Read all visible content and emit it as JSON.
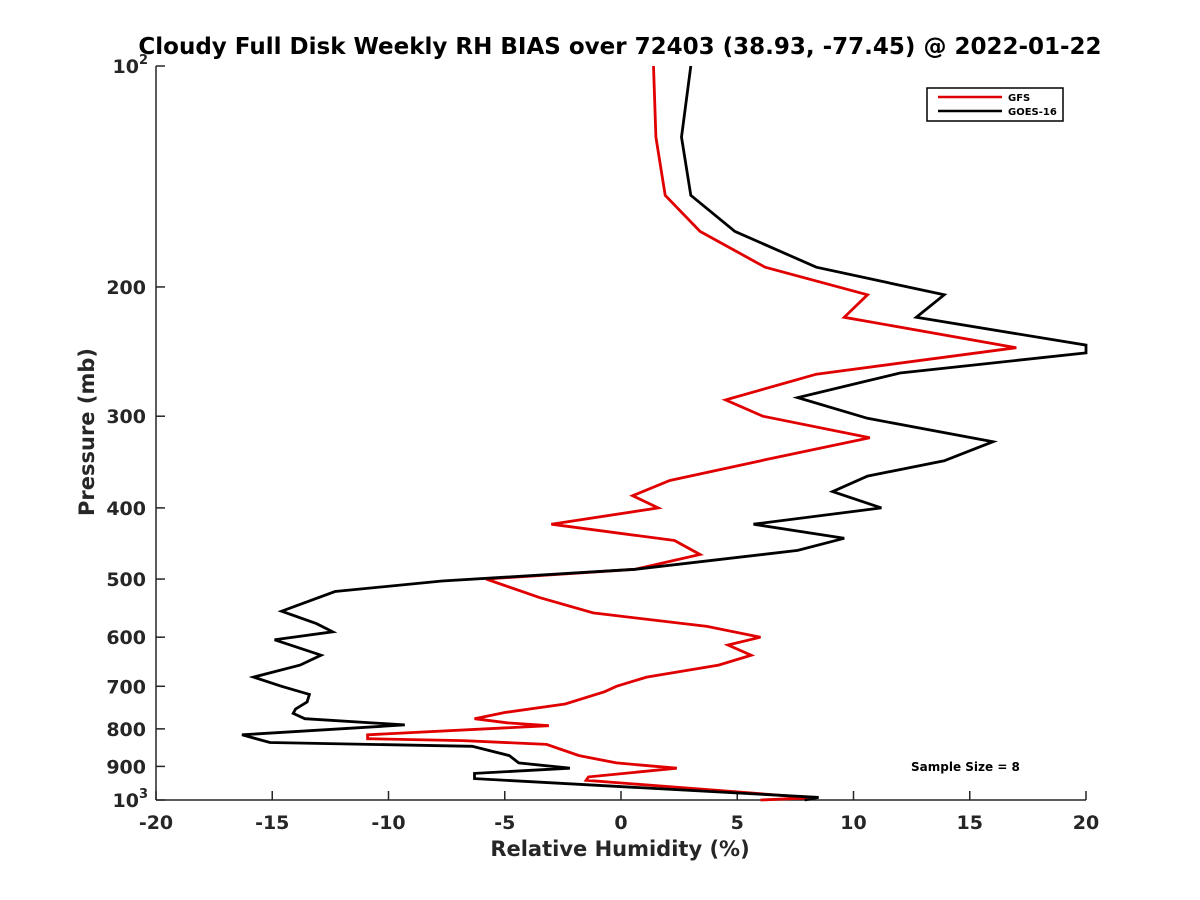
{
  "chart_data": {
    "type": "line",
    "title": "Cloudy Full Disk Weekly RH BIAS over 72403 (38.93, -77.45) @ 2022-01-22",
    "xlabel": "Relative Humidity (%)",
    "ylabel": "Pressure (mb)",
    "xlim": [
      -20,
      20
    ],
    "ylim": [
      1000,
      100
    ],
    "yscale": "log",
    "y_reversed": true,
    "x_ticks": [
      "-20",
      "-15",
      "-10",
      "-5",
      "0",
      "5",
      "10",
      "15",
      "20"
    ],
    "y_ticks": [
      {
        "value": 100,
        "base": "10",
        "exp": "2"
      },
      {
        "value": 200,
        "base": "200",
        "exp": ""
      },
      {
        "value": 300,
        "base": "300",
        "exp": ""
      },
      {
        "value": 400,
        "base": "400",
        "exp": ""
      },
      {
        "value": 500,
        "base": "500",
        "exp": ""
      },
      {
        "value": 600,
        "base": "600",
        "exp": ""
      },
      {
        "value": 700,
        "base": "700",
        "exp": ""
      },
      {
        "value": 800,
        "base": "800",
        "exp": ""
      },
      {
        "value": 900,
        "base": "900",
        "exp": ""
      },
      {
        "value": 1000,
        "base": "10",
        "exp": "3"
      }
    ],
    "grid": false,
    "legend_position": "top-right",
    "annotation": "Sample Size = 8",
    "series": [
      {
        "name": "GFS",
        "color": "#e00000",
        "points": [
          [
            1.4,
            100
          ],
          [
            1.5,
            125
          ],
          [
            1.9,
            150
          ],
          [
            3.4,
            168
          ],
          [
            6.2,
            188
          ],
          [
            10.6,
            205
          ],
          [
            9.6,
            220
          ],
          [
            17.0,
            242
          ],
          [
            8.4,
            263
          ],
          [
            4.5,
            285
          ],
          [
            6.1,
            300
          ],
          [
            10.7,
            321
          ],
          [
            6.2,
            344
          ],
          [
            2.1,
            367
          ],
          [
            0.5,
            385
          ],
          [
            1.6,
            400
          ],
          [
            -3.0,
            421
          ],
          [
            2.3,
            443
          ],
          [
            3.4,
            463
          ],
          [
            0.6,
            485
          ],
          [
            -5.8,
            500
          ],
          [
            -3.5,
            530
          ],
          [
            -1.2,
            556
          ],
          [
            3.7,
            580
          ],
          [
            6.0,
            600
          ],
          [
            4.6,
            615
          ],
          [
            5.6,
            635
          ],
          [
            4.2,
            655
          ],
          [
            1.1,
            680
          ],
          [
            -0.2,
            700
          ],
          [
            -0.7,
            712
          ],
          [
            -2.4,
            740
          ],
          [
            -5.0,
            760
          ],
          [
            -6.3,
            775
          ],
          [
            -4.9,
            785
          ],
          [
            -3.1,
            792
          ],
          [
            -10.9,
            815
          ],
          [
            -10.9,
            825
          ],
          [
            -6.8,
            830
          ],
          [
            -3.2,
            840
          ],
          [
            -1.8,
            870
          ],
          [
            -0.2,
            890
          ],
          [
            2.4,
            905
          ],
          [
            -1.4,
            930
          ],
          [
            -1.5,
            940
          ],
          [
            5.0,
            975
          ],
          [
            8.2,
            993
          ],
          [
            6.0,
            1000
          ]
        ]
      },
      {
        "name": "GOES-16",
        "color": "#000000",
        "points": [
          [
            3.0,
            100
          ],
          [
            2.6,
            125
          ],
          [
            3.0,
            150
          ],
          [
            4.9,
            168
          ],
          [
            8.4,
            188
          ],
          [
            13.9,
            205
          ],
          [
            12.7,
            220
          ],
          [
            20.0,
            240
          ],
          [
            20.0,
            246
          ],
          [
            12.0,
            262
          ],
          [
            7.6,
            283
          ],
          [
            10.6,
            302
          ],
          [
            16.0,
            325
          ],
          [
            13.9,
            345
          ],
          [
            10.6,
            362
          ],
          [
            9.1,
            380
          ],
          [
            11.2,
            400
          ],
          [
            5.7,
            421
          ],
          [
            9.6,
            440
          ],
          [
            7.6,
            457
          ],
          [
            0.6,
            485
          ],
          [
            -7.7,
            503
          ],
          [
            -12.3,
            520
          ],
          [
            -14.6,
            553
          ],
          [
            -13.1,
            575
          ],
          [
            -12.4,
            590
          ],
          [
            -14.9,
            605
          ],
          [
            -12.9,
            635
          ],
          [
            -13.8,
            655
          ],
          [
            -15.8,
            680
          ],
          [
            -14.6,
            700
          ],
          [
            -13.4,
            718
          ],
          [
            -13.5,
            735
          ],
          [
            -14.0,
            752
          ],
          [
            -14.1,
            762
          ],
          [
            -13.6,
            775
          ],
          [
            -9.3,
            790
          ],
          [
            -16.3,
            815
          ],
          [
            -15.1,
            835
          ],
          [
            -6.4,
            845
          ],
          [
            -4.8,
            870
          ],
          [
            -4.4,
            890
          ],
          [
            -2.2,
            905
          ],
          [
            -6.3,
            920
          ],
          [
            -6.3,
            935
          ],
          [
            8.5,
            992
          ],
          [
            7.9,
            1000
          ]
        ]
      }
    ]
  }
}
